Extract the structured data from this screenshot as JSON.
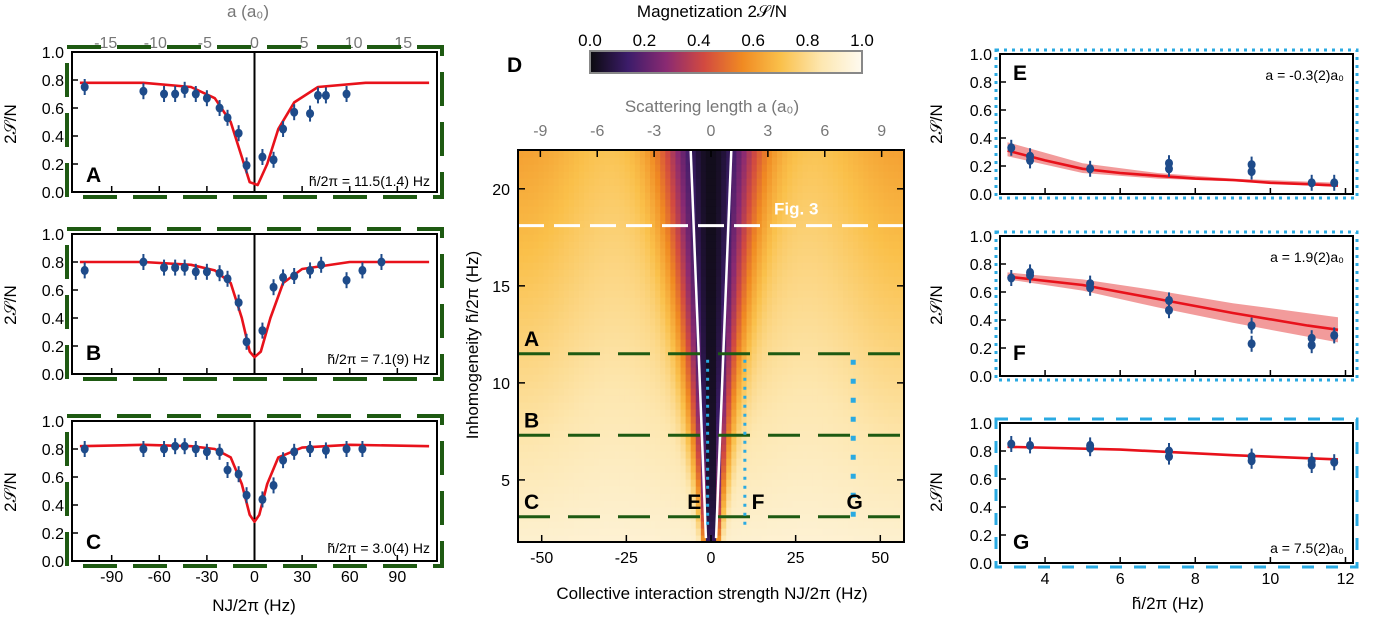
{
  "colors": {
    "data_point": "#1e4b8a",
    "fit": "#e8121b",
    "band": "#f08a8a",
    "green_dash": "#1e5a12",
    "blue_dot": "#2aaae2",
    "heat_stops": [
      "#0b0a0e",
      "#3c1c6a",
      "#8a2a72",
      "#d24a40",
      "#f08a22",
      "#fac04a",
      "#fde7b0",
      "#fefaf0"
    ]
  },
  "left_column": {
    "ylabel": "2𝒮/N",
    "xlabel": "NJ/2π (Hz)",
    "top_axis_label": "a (a₀)",
    "y_ticks": [
      "0.0",
      "0.2",
      "0.4",
      "0.6",
      "0.8",
      "1.0"
    ],
    "x_ticks": [
      "-90",
      "-60",
      "-30",
      "0",
      "30",
      "60",
      "90"
    ],
    "top_ticks": [
      "-15",
      "-10",
      "-5",
      "0",
      "5",
      "10",
      "15"
    ]
  },
  "middle": {
    "panel_label": "D",
    "colorbar_title": "Magnetization 2𝒮/N",
    "colorbar_ticks": [
      "0.0",
      "0.2",
      "0.4",
      "0.6",
      "0.8",
      "1.0"
    ],
    "top_axis_label": "Scattering length a (a₀)",
    "top_ticks": [
      "-9",
      "-6",
      "-3",
      "0",
      "3",
      "6",
      "9"
    ],
    "ylabel": "Inhomogeneity h̃/2π (Hz)",
    "y_ticks": [
      "5",
      "10",
      "15",
      "20"
    ],
    "xlabel": "Collective interaction strength NJ/2π (Hz)",
    "x_ticks": [
      "-50",
      "-25",
      "0",
      "25",
      "50"
    ],
    "fig3_label": "Fig. 3",
    "marker_labels": [
      "A",
      "B",
      "C",
      "E",
      "F",
      "G"
    ]
  },
  "right_column": {
    "ylabel": "2𝒮/N",
    "xlabel": "h̃/2π (Hz)",
    "y_ticks": [
      "0.0",
      "0.2",
      "0.4",
      "0.6",
      "0.8",
      "1.0"
    ],
    "x_ticks": [
      "4",
      "6",
      "8",
      "10",
      "12"
    ]
  },
  "chart_data": [
    {
      "panel": "A",
      "type": "scatter",
      "annotation": "h̃/2π = 11.5(1.4) Hz",
      "xlim": [
        -115,
        115
      ],
      "ylim": [
        0,
        1
      ],
      "points": [
        [
          -107,
          0.75
        ],
        [
          -70,
          0.72
        ],
        [
          -57,
          0.7
        ],
        [
          -50,
          0.7
        ],
        [
          -44,
          0.73
        ],
        [
          -37,
          0.7
        ],
        [
          -30,
          0.67
        ],
        [
          -22,
          0.6
        ],
        [
          -17,
          0.53
        ],
        [
          -10,
          0.42
        ],
        [
          -5,
          0.19
        ],
        [
          5,
          0.25
        ],
        [
          12,
          0.23
        ],
        [
          18,
          0.45
        ],
        [
          25,
          0.57
        ],
        [
          35,
          0.56
        ],
        [
          40,
          0.69
        ],
        [
          45,
          0.69
        ],
        [
          58,
          0.7
        ]
      ],
      "fit": [
        [
          -110,
          0.78
        ],
        [
          -70,
          0.78
        ],
        [
          -40,
          0.75
        ],
        [
          -25,
          0.67
        ],
        [
          -15,
          0.5
        ],
        [
          -8,
          0.25
        ],
        [
          -3,
          0.07
        ],
        [
          2,
          0.05
        ],
        [
          8,
          0.2
        ],
        [
          15,
          0.45
        ],
        [
          25,
          0.64
        ],
        [
          40,
          0.75
        ],
        [
          70,
          0.78
        ],
        [
          110,
          0.78
        ]
      ]
    },
    {
      "panel": "B",
      "type": "scatter",
      "annotation": "h̃/2π = 7.1(9) Hz",
      "xlim": [
        -115,
        115
      ],
      "ylim": [
        0,
        1
      ],
      "points": [
        [
          -107,
          0.74
        ],
        [
          -70,
          0.8
        ],
        [
          -57,
          0.76
        ],
        [
          -50,
          0.76
        ],
        [
          -44,
          0.76
        ],
        [
          -37,
          0.73
        ],
        [
          -30,
          0.73
        ],
        [
          -22,
          0.72
        ],
        [
          -17,
          0.68
        ],
        [
          -10,
          0.51
        ],
        [
          -5,
          0.23
        ],
        [
          5,
          0.31
        ],
        [
          12,
          0.62
        ],
        [
          18,
          0.69
        ],
        [
          25,
          0.7
        ],
        [
          35,
          0.74
        ],
        [
          42,
          0.78
        ],
        [
          58,
          0.67
        ],
        [
          68,
          0.74
        ],
        [
          80,
          0.8
        ]
      ],
      "fit": [
        [
          -110,
          0.8
        ],
        [
          -70,
          0.8
        ],
        [
          -40,
          0.78
        ],
        [
          -25,
          0.74
        ],
        [
          -15,
          0.65
        ],
        [
          -8,
          0.4
        ],
        [
          -3,
          0.16
        ],
        [
          0,
          0.12
        ],
        [
          4,
          0.16
        ],
        [
          10,
          0.4
        ],
        [
          18,
          0.65
        ],
        [
          30,
          0.75
        ],
        [
          60,
          0.8
        ],
        [
          110,
          0.8
        ]
      ]
    },
    {
      "panel": "C",
      "type": "scatter",
      "annotation": "h̃/2π = 3.0(4) Hz",
      "xlim": [
        -115,
        115
      ],
      "ylim": [
        0,
        1
      ],
      "points": [
        [
          -107,
          0.8
        ],
        [
          -70,
          0.8
        ],
        [
          -57,
          0.8
        ],
        [
          -50,
          0.82
        ],
        [
          -44,
          0.82
        ],
        [
          -37,
          0.8
        ],
        [
          -30,
          0.78
        ],
        [
          -22,
          0.78
        ],
        [
          -17,
          0.65
        ],
        [
          -10,
          0.62
        ],
        [
          -5,
          0.47
        ],
        [
          5,
          0.44
        ],
        [
          12,
          0.54
        ],
        [
          18,
          0.72
        ],
        [
          25,
          0.78
        ],
        [
          35,
          0.8
        ],
        [
          45,
          0.79
        ],
        [
          58,
          0.8
        ],
        [
          68,
          0.8
        ]
      ],
      "fit": [
        [
          -110,
          0.82
        ],
        [
          -70,
          0.83
        ],
        [
          -40,
          0.82
        ],
        [
          -25,
          0.8
        ],
        [
          -15,
          0.74
        ],
        [
          -8,
          0.55
        ],
        [
          -3,
          0.33
        ],
        [
          0,
          0.28
        ],
        [
          3,
          0.33
        ],
        [
          8,
          0.55
        ],
        [
          15,
          0.74
        ],
        [
          30,
          0.81
        ],
        [
          60,
          0.83
        ],
        [
          110,
          0.82
        ]
      ]
    },
    {
      "panel": "E",
      "type": "scatter",
      "annotation": "a = -0.3(2)a₀",
      "xlim": [
        2.8,
        12.2
      ],
      "ylim": [
        0,
        1
      ],
      "points": [
        [
          3.1,
          0.33
        ],
        [
          3.6,
          0.27
        ],
        [
          3.6,
          0.24
        ],
        [
          5.2,
          0.18
        ],
        [
          7.3,
          0.22
        ],
        [
          7.3,
          0.18
        ],
        [
          9.5,
          0.21
        ],
        [
          9.5,
          0.16
        ],
        [
          11.1,
          0.08
        ],
        [
          11.7,
          0.08
        ]
      ],
      "fit": [
        [
          3.0,
          0.31
        ],
        [
          4,
          0.24
        ],
        [
          5,
          0.18
        ],
        [
          6,
          0.15
        ],
        [
          7,
          0.13
        ],
        [
          8,
          0.11
        ],
        [
          9,
          0.1
        ],
        [
          10,
          0.08
        ],
        [
          11,
          0.07
        ],
        [
          11.8,
          0.06
        ]
      ],
      "band": [
        [
          3.0,
          0.37,
          0.27
        ],
        [
          5,
          0.22,
          0.15
        ],
        [
          7,
          0.15,
          0.11
        ],
        [
          9,
          0.11,
          0.09
        ],
        [
          11.8,
          0.08,
          0.05
        ]
      ]
    },
    {
      "panel": "F",
      "type": "scatter",
      "annotation": "a = 1.9(2)a₀",
      "xlim": [
        2.8,
        12.2
      ],
      "ylim": [
        0,
        1
      ],
      "points": [
        [
          3.1,
          0.7
        ],
        [
          3.6,
          0.74
        ],
        [
          3.6,
          0.72
        ],
        [
          5.2,
          0.66
        ],
        [
          5.2,
          0.63
        ],
        [
          7.3,
          0.54
        ],
        [
          7.3,
          0.47
        ],
        [
          9.5,
          0.36
        ],
        [
          9.5,
          0.23
        ],
        [
          11.1,
          0.27
        ],
        [
          11.1,
          0.22
        ],
        [
          11.7,
          0.29
        ]
      ],
      "fit": [
        [
          3.0,
          0.71
        ],
        [
          5,
          0.65
        ],
        [
          7,
          0.55
        ],
        [
          9,
          0.45
        ],
        [
          11,
          0.36
        ],
        [
          11.8,
          0.33
        ]
      ],
      "band": [
        [
          3.0,
          0.74,
          0.69
        ],
        [
          5,
          0.69,
          0.61
        ],
        [
          7,
          0.61,
          0.49
        ],
        [
          9,
          0.52,
          0.38
        ],
        [
          11.8,
          0.42,
          0.24
        ]
      ]
    },
    {
      "panel": "G",
      "type": "scatter",
      "annotation": "a = 7.5(2)a₀",
      "xlim": [
        2.8,
        12.2
      ],
      "ylim": [
        0,
        1
      ],
      "points": [
        [
          3.1,
          0.85
        ],
        [
          3.6,
          0.84
        ],
        [
          5.2,
          0.84
        ],
        [
          5.2,
          0.82
        ],
        [
          7.3,
          0.8
        ],
        [
          7.3,
          0.76
        ],
        [
          9.5,
          0.76
        ],
        [
          9.5,
          0.73
        ],
        [
          11.1,
          0.73
        ],
        [
          11.1,
          0.7
        ],
        [
          11.7,
          0.72
        ]
      ],
      "fit": [
        [
          3.0,
          0.83
        ],
        [
          6,
          0.81
        ],
        [
          9,
          0.77
        ],
        [
          11.8,
          0.74
        ]
      ]
    },
    {
      "panel": "D",
      "type": "heatmap",
      "xlim": [
        -57,
        57
      ],
      "ylim": [
        1.8,
        22
      ],
      "value_label": "Magnetization 2𝒮/N",
      "value_range": [
        0,
        1
      ],
      "dark_boundary": {
        "y": [
          2,
          22
        ],
        "half_width": [
          1.5,
          6
        ]
      },
      "fig3_line_h": 18.1,
      "green_lines_h": [
        11.5,
        7.3,
        3.1
      ],
      "blue_lines_nj": [
        -1,
        10,
        42
      ]
    }
  ]
}
